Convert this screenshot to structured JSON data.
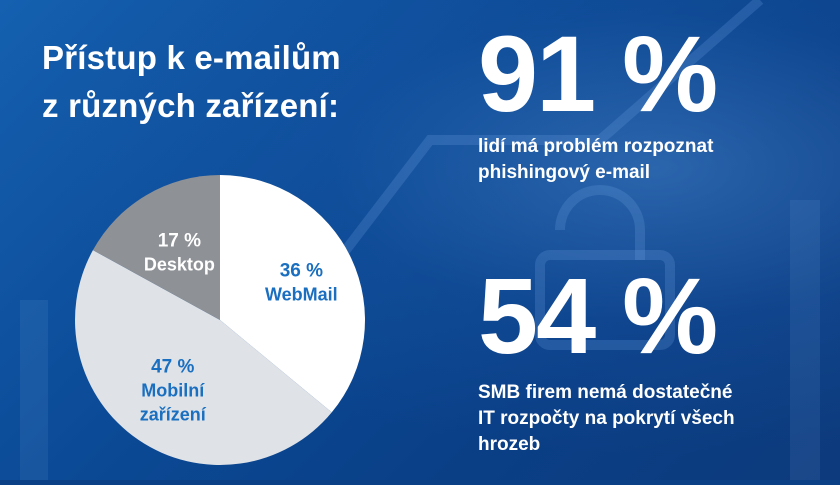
{
  "title": {
    "line1": "Přístup k e-mailům",
    "line2": "z různých zařízení:"
  },
  "chart_data": {
    "type": "pie",
    "title": "Přístup k e-mailům z různých zařízení:",
    "slices": [
      {
        "label": "WebMail",
        "value": 36,
        "value_label": "36 %",
        "color": "#ffffff",
        "text_color": "#1a6fc0"
      },
      {
        "label": "Mobilní zařízení",
        "value": 47,
        "value_label": "47 %",
        "label_lines": [
          "Mobilní",
          "zařízení"
        ],
        "color": "#dfe3e8",
        "text_color": "#1a6fc0"
      },
      {
        "label": "Desktop",
        "value": 17,
        "value_label": "17 %",
        "color": "#8e9196",
        "text_color": "#ffffff"
      }
    ]
  },
  "stats": [
    {
      "value": "91 %",
      "description_lines": [
        "lidí má problém rozpoznat",
        "phishingový e-mail"
      ]
    },
    {
      "value": "54 %",
      "description_lines": [
        "SMB firem nemá dostatečné",
        "IT rozpočty na pokrytí všech",
        "hrozeb"
      ]
    }
  ]
}
